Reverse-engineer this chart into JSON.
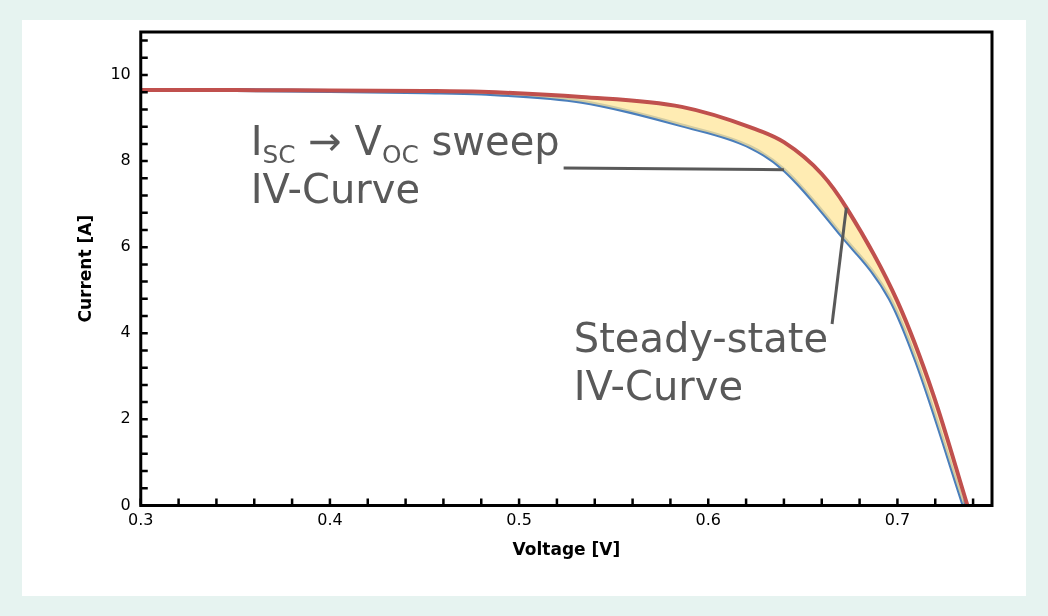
{
  "chart_data": {
    "type": "line",
    "xlabel": "Voltage [V]",
    "ylabel": "Current [A]",
    "xlim": [
      0.3,
      0.75
    ],
    "ylim": [
      0,
      11
    ],
    "xticks": [
      0.3,
      {
        "value": 0.32,
        "label": null
      },
      {
        "value": 0.34,
        "label": null
      },
      {
        "value": 0.36,
        "label": null
      },
      {
        "value": 0.38,
        "label": null
      },
      0.4,
      {
        "value": 0.42,
        "label": null
      },
      {
        "value": 0.44,
        "label": null
      },
      {
        "value": 0.46,
        "label": null
      },
      {
        "value": 0.48,
        "label": null
      },
      0.5,
      {
        "value": 0.52,
        "label": null
      },
      {
        "value": 0.54,
        "label": null
      },
      {
        "value": 0.56,
        "label": null
      },
      {
        "value": 0.58,
        "label": null
      },
      0.6,
      {
        "value": 0.62,
        "label": null
      },
      {
        "value": 0.64,
        "label": null
      },
      {
        "value": 0.66,
        "label": null
      },
      {
        "value": 0.68,
        "label": null
      },
      0.7,
      {
        "value": 0.72,
        "label": null
      },
      {
        "value": 0.74,
        "label": null
      }
    ],
    "yticks": [
      0,
      {
        "value": 0.4,
        "label": null
      },
      {
        "value": 0.8,
        "label": null
      },
      {
        "value": 1.2,
        "label": null
      },
      {
        "value": 1.6,
        "label": null
      },
      2,
      {
        "value": 2.4,
        "label": null
      },
      {
        "value": 2.8,
        "label": null
      },
      {
        "value": 3.2,
        "label": null
      },
      {
        "value": 3.6,
        "label": null
      },
      4,
      {
        "value": 4.4,
        "label": null
      },
      {
        "value": 4.8,
        "label": null
      },
      {
        "value": 5.2,
        "label": null
      },
      {
        "value": 5.6,
        "label": null
      },
      6,
      {
        "value": 6.4,
        "label": null
      },
      {
        "value": 6.8,
        "label": null
      },
      {
        "value": 7.2,
        "label": null
      },
      {
        "value": 7.6,
        "label": null
      },
      8,
      {
        "value": 8.4,
        "label": null
      },
      {
        "value": 8.8,
        "label": null
      },
      {
        "value": 9.2,
        "label": null
      },
      {
        "value": 9.6,
        "label": null
      },
      10,
      {
        "value": 10.4,
        "label": null
      },
      {
        "value": 10.8,
        "label": null
      }
    ],
    "series": [
      {
        "color": "#4a7ebb",
        "x": [
          0.3,
          0.35,
          0.4,
          0.45,
          0.48,
          0.533,
          0.586,
          0.622,
          0.64,
          0.67,
          0.696,
          0.71,
          0.735
        ],
        "values": [
          9.65,
          9.65,
          9.63,
          9.6,
          9.57,
          9.38,
          8.83,
          8.33,
          7.8,
          6.3,
          4.8,
          3.34,
          0
        ]
      },
      {
        "color": "#c0504d",
        "x": [
          0.3,
          0.35,
          0.4,
          0.45,
          0.48,
          0.533,
          0.586,
          0.622,
          0.64,
          0.66,
          0.673,
          0.7,
          0.719,
          0.737
        ],
        "values": [
          9.65,
          9.65,
          9.64,
          9.63,
          9.61,
          9.49,
          9.26,
          8.79,
          8.44,
          7.7,
          6.92,
          4.74,
          2.57,
          0
        ]
      }
    ],
    "annotations": [
      {
        "text": "I$_{SC}$ → V$_{OC}$ sweep IV-Curve",
        "x": 0.64,
        "y": 7.8
      },
      {
        "text": "Steady-state IV-Curve",
        "x": 0.673,
        "y": 6.92
      }
    ]
  }
}
